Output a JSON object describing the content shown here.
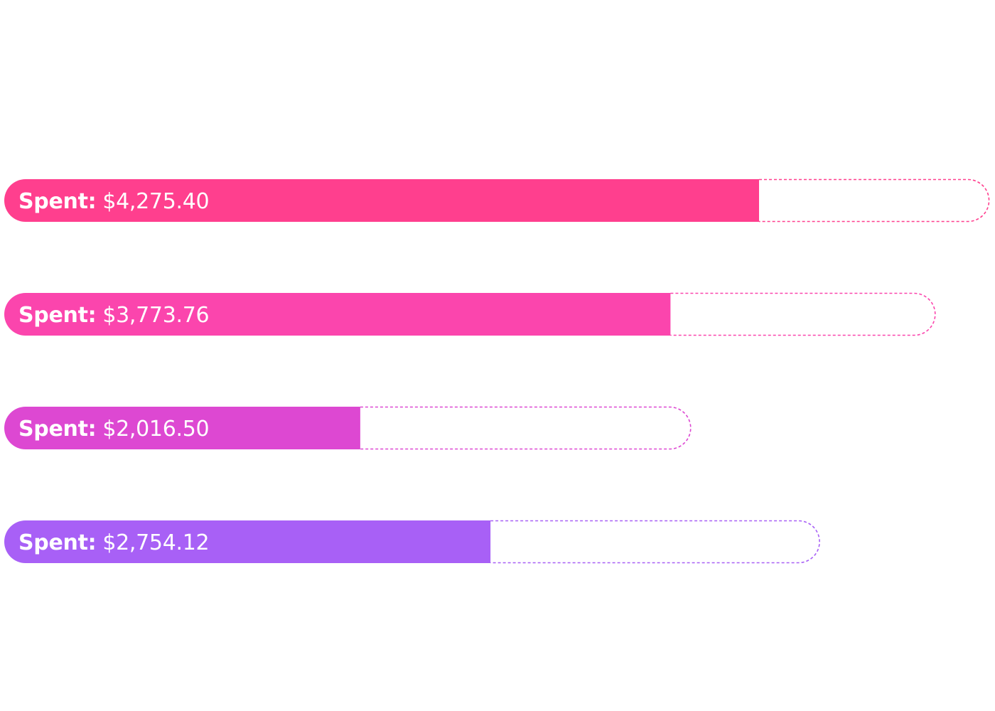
{
  "chart_data": {
    "type": "bar",
    "orientation": "horizontal",
    "spent_label": "Spent:",
    "bars": [
      {
        "spent": "$4,275.40",
        "value": 4275.4,
        "budget": 5580,
        "color": "#ff3f8e"
      },
      {
        "spent": "$3,773.76",
        "value": 3773.76,
        "budget": 5275,
        "color": "#fb45ad"
      },
      {
        "spent": "$2,016.50",
        "value": 2016.5,
        "budget": 3890,
        "color": "#dd48d2"
      },
      {
        "spent": "$2,754.12",
        "value": 2754.12,
        "budget": 4620,
        "color": "#a860f6"
      }
    ]
  }
}
